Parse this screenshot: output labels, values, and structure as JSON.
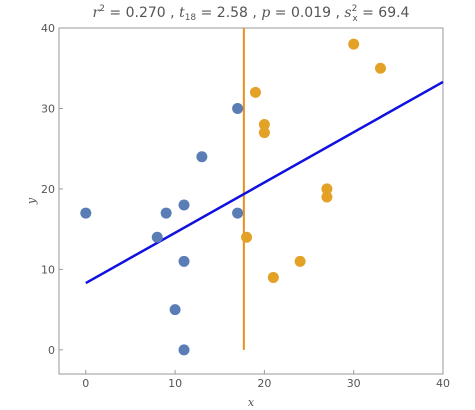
{
  "title": {
    "r2": {
      "symbol": "r",
      "sup": "2",
      "value": "0.270"
    },
    "t": {
      "symbol": "t",
      "sub": "18",
      "value": "2.58"
    },
    "p": {
      "symbol": "p",
      "value": "0.019"
    },
    "s2": {
      "symbol": "s",
      "sup": "2",
      "sub": "x",
      "value": "69.4"
    }
  },
  "chart_data": {
    "type": "scatter",
    "xlabel": "x",
    "ylabel": "y",
    "xlim": [
      -3,
      40
    ],
    "ylim": [
      -3,
      40
    ],
    "xticks": [
      0,
      10,
      20,
      30,
      40
    ],
    "yticks": [
      0,
      10,
      20,
      30,
      40
    ],
    "grid": false,
    "series": [
      {
        "color": "#5b7db5",
        "points": [
          [
            0,
            17
          ],
          [
            8,
            14
          ],
          [
            9,
            17
          ],
          [
            10,
            5
          ],
          [
            11,
            0
          ],
          [
            11,
            11
          ],
          [
            11,
            18
          ],
          [
            13,
            24
          ],
          [
            17,
            17
          ],
          [
            17,
            30
          ]
        ]
      },
      {
        "color": "#e3a126",
        "points": [
          [
            18,
            14
          ],
          [
            19,
            32
          ],
          [
            20,
            27
          ],
          [
            20,
            28
          ],
          [
            21,
            9
          ],
          [
            24,
            11
          ],
          [
            27,
            19
          ],
          [
            27,
            20
          ],
          [
            30,
            38
          ],
          [
            33,
            35
          ]
        ]
      }
    ],
    "fit_line": {
      "color": "#1010e0",
      "x": [
        0,
        40
      ],
      "y": [
        8.3,
        33.3
      ]
    },
    "threshold_line": {
      "color": "#e8901a",
      "x": 17.7,
      "y": [
        0,
        40
      ]
    }
  }
}
